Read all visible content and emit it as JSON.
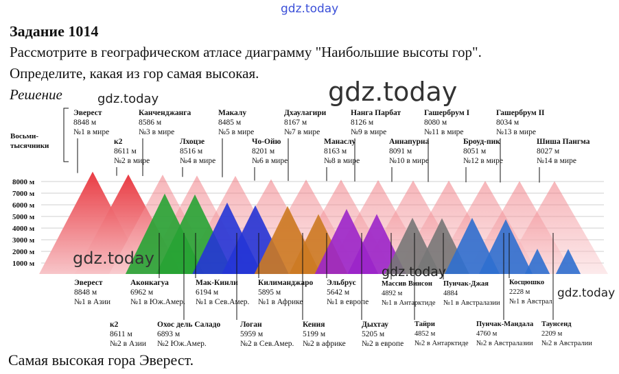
{
  "watermark": "gdz.today",
  "task": {
    "title": "Задание 1014",
    "line1": "Рассмотрите в географическом атласе диаграмму \"Наибольшие высоты гор\".",
    "line2": "Определите, какая из гор самая высокая.",
    "solution_label": "Решение",
    "answer": "Самая высокая гора Эверест."
  },
  "chart_data": {
    "type": "diagram",
    "group_label": [
      "Восьми-",
      "тысячники"
    ],
    "y_ticks": [
      "8000 м",
      "7000 м",
      "6000 м",
      "5000 м",
      "4000 м",
      "3000 м",
      "2000 м",
      "1000 м"
    ],
    "y_values": [
      8000,
      7000,
      6000,
      5000,
      4000,
      3000,
      2000,
      1000
    ],
    "eight_thousanders": [
      {
        "name": "Эверест",
        "height": "8848 м",
        "rank": "№1 в мире",
        "value": 8848
      },
      {
        "name": "к2",
        "height": "8611 м",
        "rank": "№2 в мире",
        "value": 8611
      },
      {
        "name": "Канченджанга",
        "height": "8586 м",
        "rank": "№3 в мире",
        "value": 8586
      },
      {
        "name": "Лхоцзе",
        "height": "8516 м",
        "rank": "№4 в мире",
        "value": 8516
      },
      {
        "name": "Макалу",
        "height": "8485 м",
        "rank": "№5 в мире",
        "value": 8485
      },
      {
        "name": "Чо-Ойю",
        "height": "8201 м",
        "rank": "№6 в мире",
        "value": 8201
      },
      {
        "name": "Дхаулагири",
        "height": "8167 м",
        "rank": "№7 в мире",
        "value": 8167
      },
      {
        "name": "Манаслу",
        "height": "8163 м",
        "rank": "№8 в мире",
        "value": 8163
      },
      {
        "name": "Нанга Парбат",
        "height": "8126 м",
        "rank": "№9 в мире",
        "value": 8126
      },
      {
        "name": "Аннапурна",
        "height": "8091 м",
        "rank": "№10 в мире",
        "value": 8091
      },
      {
        "name": "Гашербрум I",
        "height": "8080 м",
        "rank": "№11 в мире",
        "value": 8080
      },
      {
        "name": "Броуд-пик",
        "height": "8051 м",
        "rank": "№12 в мире",
        "value": 8051
      },
      {
        "name": "Гашербрум II",
        "height": "8034 м",
        "rank": "№13 в мире",
        "value": 8034
      },
      {
        "name": "Шиша Пангма",
        "height": "8027 м",
        "rank": "№14 в мире",
        "value": 8027
      }
    ],
    "continental": [
      {
        "name": "Эверест",
        "height": "8848 м",
        "rank": "№1 в Азии",
        "value": 8848,
        "color": "#e8323a"
      },
      {
        "name": "к2",
        "height": "8611 м",
        "rank": "№2 в Азии",
        "value": 8611,
        "color": "#e8323a"
      },
      {
        "name": "Аконкагуа",
        "height": "6962 м",
        "rank": "№1 в Юж.Амер.",
        "value": 6962,
        "color": "#27a334"
      },
      {
        "name": "Охос дель Саладо",
        "height": "6893 м",
        "rank": "№2 Юж.Амер.",
        "value": 6893,
        "color": "#27a334"
      },
      {
        "name": "Мак-Кинли",
        "height": "6194 м",
        "rank": "№1 в Сев.Амер.",
        "value": 6194,
        "color": "#2535d6"
      },
      {
        "name": "Логан",
        "height": "5959 м",
        "rank": "№2 в Сев.Амер.",
        "value": 5959,
        "color": "#2535d6"
      },
      {
        "name": "Килиманджаро",
        "height": "5895 м",
        "rank": "№1 в Африке",
        "value": 5895,
        "color": "#cc7a22"
      },
      {
        "name": "Кения",
        "height": "5199 м",
        "rank": "№2 в африке",
        "value": 5199,
        "color": "#cc7a22"
      },
      {
        "name": "Эльбрус",
        "height": "5642 м",
        "rank": "№1 в европе",
        "value": 5642,
        "color": "#9b25c9"
      },
      {
        "name": "Дыхтау",
        "height": "5205 м",
        "rank": "№2 в европе",
        "value": 5205,
        "color": "#9b25c9"
      },
      {
        "name": "Массив Винсон",
        "height": "4892 м",
        "rank": "№1 в Антарктиде",
        "value": 4892,
        "color": "#777777"
      },
      {
        "name": "Тайри",
        "height": "4852 м",
        "rank": "№2 в Антарктиде",
        "value": 4852,
        "color": "#777777"
      },
      {
        "name": "Пунчак-Джая",
        "height": "4884",
        "rank": "№1 в Австралазии",
        "value": 4884,
        "color": "#2f6fcf"
      },
      {
        "name": "Пунчак-Мандала",
        "height": "4760 м",
        "rank": "№2 в Австралазии",
        "value": 4760,
        "color": "#2f6fcf"
      },
      {
        "name": "Косцюшко",
        "height": "2228 м",
        "rank": "№1 в Австрал.",
        "value": 2228,
        "color": "#2f6fcf"
      },
      {
        "name": "Таунсенд",
        "height": "2209 м",
        "rank": "№2 в Австралии",
        "value": 2209,
        "color": "#2f6fcf"
      }
    ]
  }
}
